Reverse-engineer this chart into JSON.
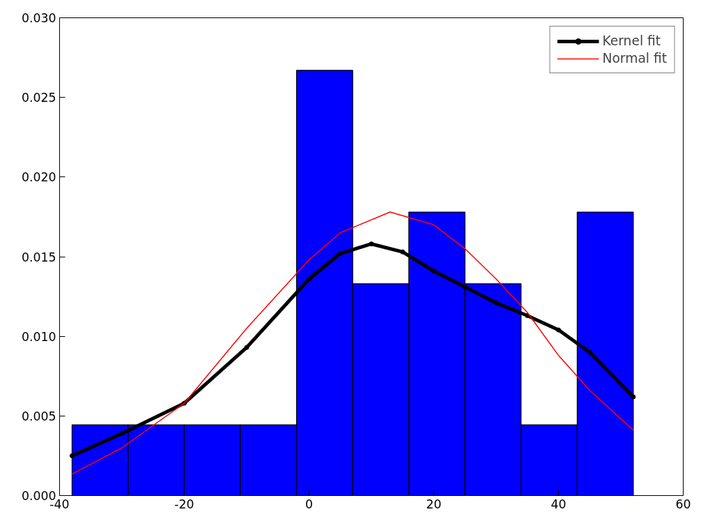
{
  "chart_data": {
    "type": "histogram",
    "xlim": [
      -40,
      60
    ],
    "xticks": [
      -40,
      -20,
      0,
      20,
      40,
      60
    ],
    "ylim": [
      0,
      0.03
    ],
    "yticks": [
      {
        "value": 0,
        "label": "0.000"
      },
      {
        "value": 0.005,
        "label": "0.005"
      },
      {
        "value": 0.01,
        "label": "0.010"
      },
      {
        "value": 0.015,
        "label": "0.015"
      },
      {
        "value": 0.02,
        "label": "0.020"
      },
      {
        "value": 0.025,
        "label": "0.025"
      },
      {
        "value": 0.03,
        "label": "0.030"
      }
    ],
    "grid": false,
    "legend": "top right",
    "series": [
      {
        "color": "#0000ff",
        "bins": [
          -38,
          -29,
          -20,
          -11,
          -2,
          7,
          16,
          25,
          34,
          43,
          52
        ],
        "values": [
          0.00444,
          0.00444,
          0.00444,
          0.00444,
          0.0267,
          0.0133,
          0.0178,
          0.0133,
          0.00444,
          0.0178
        ]
      },
      {
        "type": "line",
        "name": "Kernel fit",
        "color": "#000000",
        "marker": "circle",
        "x": [
          -38,
          -30,
          -20,
          -10,
          0,
          5,
          10,
          15,
          20,
          25,
          30,
          35,
          40,
          45,
          52
        ],
        "values": [
          0.0025,
          0.0039,
          0.0058,
          0.0093,
          0.0136,
          0.0152,
          0.0158,
          0.0153,
          0.0141,
          0.0131,
          0.0121,
          0.0113,
          0.0104,
          0.009,
          0.0062
        ]
      },
      {
        "type": "line",
        "name": "Normal fit",
        "color": "#ff0000",
        "x": [
          -38,
          -30,
          -20,
          -10,
          0,
          5,
          13,
          20,
          25,
          30,
          35,
          40,
          45,
          52
        ],
        "values": [
          0.00135,
          0.003,
          0.0058,
          0.0105,
          0.0148,
          0.0165,
          0.0178,
          0.017,
          0.0155,
          0.0136,
          0.0115,
          0.0088,
          0.0066,
          0.0041
        ]
      }
    ]
  }
}
